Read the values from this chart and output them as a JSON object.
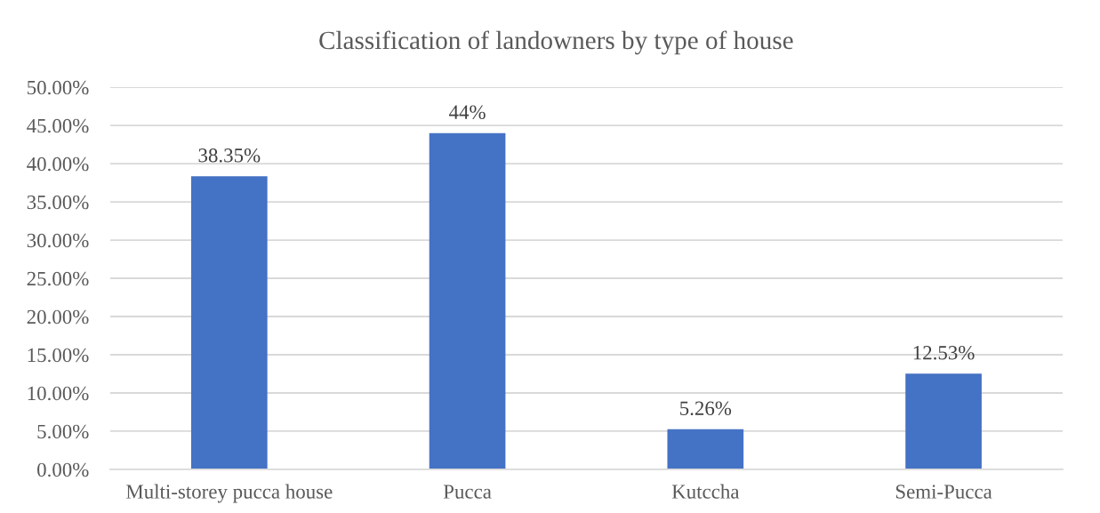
{
  "chart_data": {
    "type": "bar",
    "title": "Classification of landowners by type of house",
    "categories": [
      "Multi-storey pucca house",
      "Pucca",
      "Kutccha",
      "Semi-Pucca"
    ],
    "values": [
      38.35,
      44,
      5.26,
      12.53
    ],
    "value_labels": [
      "38.35%",
      "44%",
      "5.26%",
      "12.53%"
    ],
    "color": "#4472c4",
    "ylim": [
      0,
      50
    ],
    "yticks": [
      {
        "value": 0,
        "label": "0.00%"
      },
      {
        "value": 5,
        "label": "5.00%"
      },
      {
        "value": 10,
        "label": "10.00%"
      },
      {
        "value": 15,
        "label": "15.00%"
      },
      {
        "value": 20,
        "label": "20.00%"
      },
      {
        "value": 25,
        "label": "25.00%"
      },
      {
        "value": 30,
        "label": "30.00%"
      },
      {
        "value": 35,
        "label": "35.00%"
      },
      {
        "value": 40,
        "label": "40.00%"
      },
      {
        "value": 45,
        "label": "45.00%"
      },
      {
        "value": 50,
        "label": "50.00%"
      }
    ],
    "grid": "y"
  }
}
